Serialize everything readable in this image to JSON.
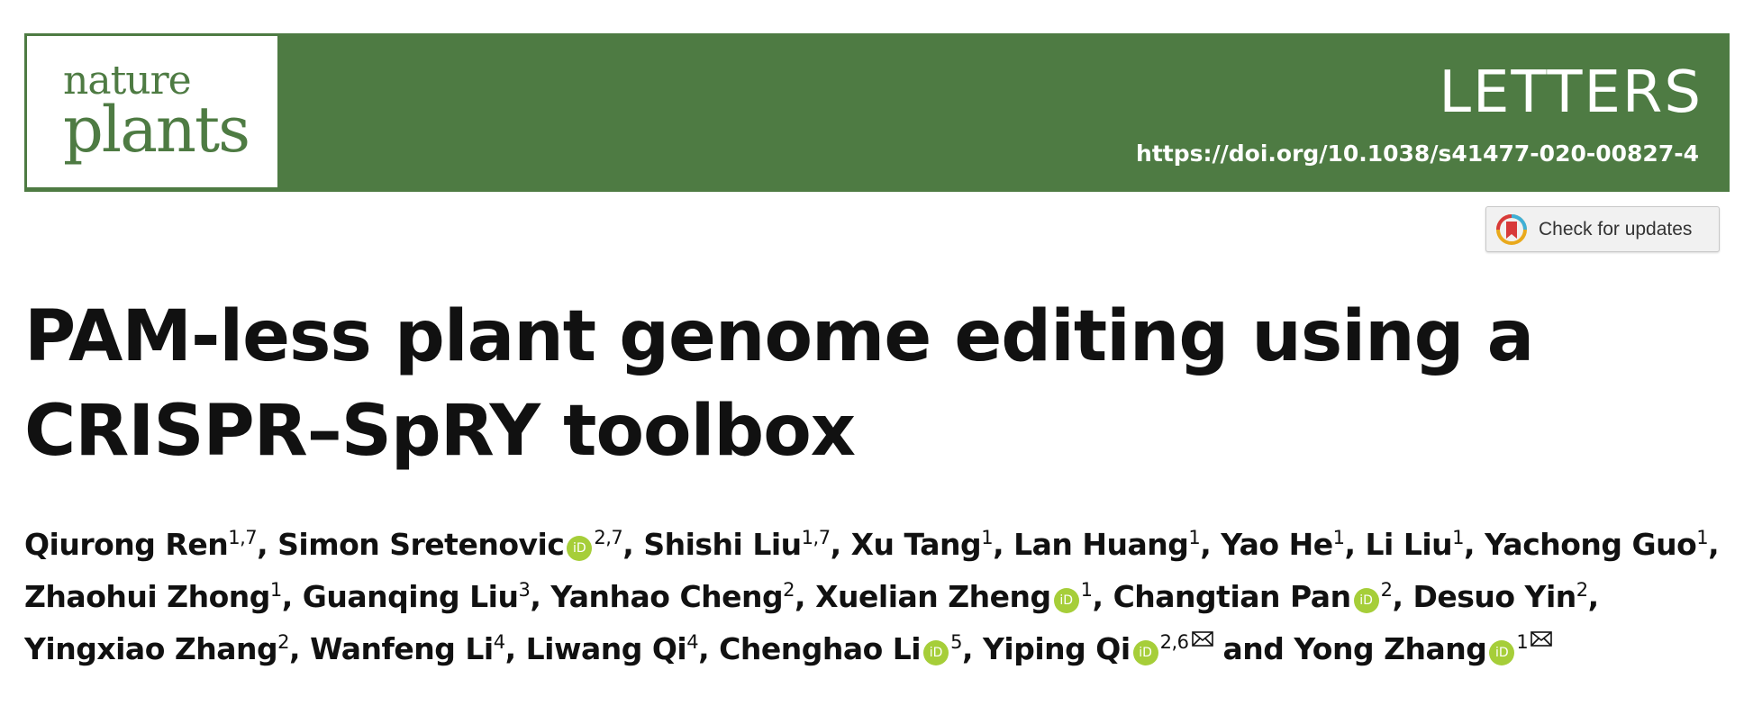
{
  "journal": {
    "logo_line1": "nature",
    "logo_line2": "plants",
    "section": "LETTERS",
    "doi": "https://doi.org/10.1038/s41477-020-00827-4",
    "brand_color": "#4e7b43"
  },
  "updates_button": {
    "label": "Check for updates",
    "icon": "crossmark-icon"
  },
  "article": {
    "title_line1": "PAM-less plant genome editing using a",
    "title_line2": "CRISPR–SpRY toolbox"
  },
  "authors": [
    {
      "name": "Qiurong Ren",
      "aff": "1,7",
      "orcid": false,
      "corresponding": false,
      "sep": ", "
    },
    {
      "name": "Simon Sretenovic",
      "aff": "2,7",
      "orcid": true,
      "corresponding": false,
      "sep": ", "
    },
    {
      "name": "Shishi Liu",
      "aff": "1,7",
      "orcid": false,
      "corresponding": false,
      "sep": ", "
    },
    {
      "name": "Xu Tang",
      "aff": "1",
      "orcid": false,
      "corresponding": false,
      "sep": ", "
    },
    {
      "name": "Lan Huang",
      "aff": "1",
      "orcid": false,
      "corresponding": false,
      "sep": ", "
    },
    {
      "name": "Yao He",
      "aff": "1",
      "orcid": false,
      "corresponding": false,
      "sep": ", "
    },
    {
      "name": "Li Liu",
      "aff": "1",
      "orcid": false,
      "corresponding": false,
      "sep": ", "
    },
    {
      "name": "Yachong Guo",
      "aff": "1",
      "orcid": false,
      "corresponding": false,
      "sep": ", "
    },
    {
      "name": "Zhaohui Zhong",
      "aff": "1",
      "orcid": false,
      "corresponding": false,
      "sep": ", "
    },
    {
      "name": "Guanqing Liu",
      "aff": "3",
      "orcid": false,
      "corresponding": false,
      "sep": ", "
    },
    {
      "name": "Yanhao Cheng",
      "aff": "2",
      "orcid": false,
      "corresponding": false,
      "sep": ", "
    },
    {
      "name": "Xuelian Zheng",
      "aff": "1",
      "orcid": true,
      "corresponding": false,
      "sep": ", "
    },
    {
      "name": "Changtian Pan",
      "aff": "2",
      "orcid": true,
      "corresponding": false,
      "sep": ", "
    },
    {
      "name": "Desuo Yin",
      "aff": "2",
      "orcid": false,
      "corresponding": false,
      "sep": ", "
    },
    {
      "name": "Yingxiao Zhang",
      "aff": "2",
      "orcid": false,
      "corresponding": false,
      "sep": ", "
    },
    {
      "name": "Wanfeng Li",
      "aff": "4",
      "orcid": false,
      "corresponding": false,
      "sep": ", "
    },
    {
      "name": "Liwang Qi",
      "aff": "4",
      "orcid": false,
      "corresponding": false,
      "sep": ", "
    },
    {
      "name": "Chenghao Li",
      "aff": "5",
      "orcid": true,
      "corresponding": false,
      "sep": ", "
    },
    {
      "name": "Yiping Qi",
      "aff": "2,6",
      "orcid": true,
      "corresponding": true,
      "sep": " and "
    },
    {
      "name": "Yong Zhang",
      "aff": "1",
      "orcid": true,
      "corresponding": true,
      "sep": ""
    }
  ],
  "orcid_badge": {
    "label": "iD",
    "color": "#a6ce39",
    "icon": "orcid-icon"
  },
  "corresponding_icon": "envelope-icon"
}
